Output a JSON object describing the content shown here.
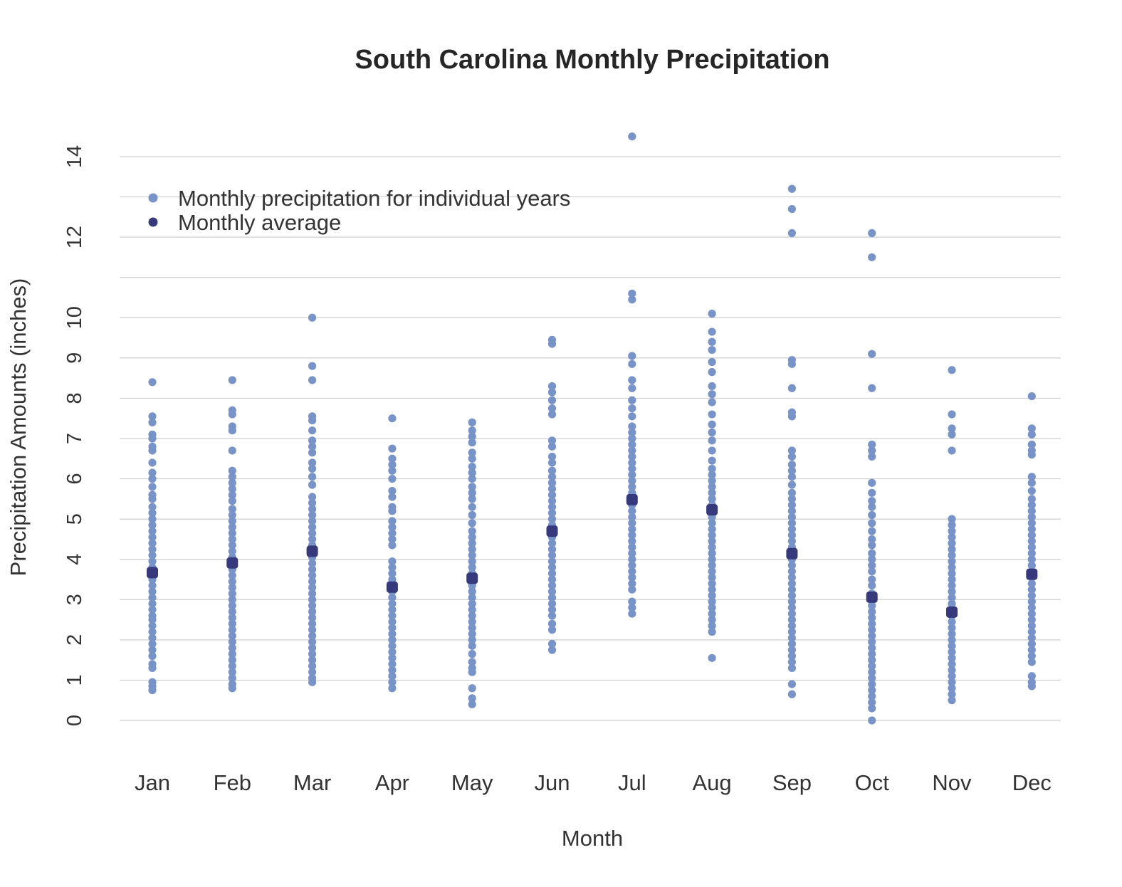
{
  "chart_data": {
    "type": "scatter",
    "title": "South Carolina Monthly Precipitation",
    "xlabel": "Month",
    "ylabel": "Precipitation Amounts (inches)",
    "categories": [
      "Jan",
      "Feb",
      "Mar",
      "Apr",
      "May",
      "Jun",
      "Jul",
      "Aug",
      "Sep",
      "Oct",
      "Nov",
      "Dec"
    ],
    "ylim": [
      0,
      14
    ],
    "yticks": [
      0,
      1,
      2,
      3,
      4,
      5,
      6,
      7,
      8,
      9,
      10,
      12,
      14
    ],
    "grid_values": [
      0,
      1,
      2,
      3,
      4,
      5,
      6,
      7,
      8,
      9,
      10,
      11,
      12,
      13,
      14
    ],
    "grid": true,
    "legend_position": "top-left",
    "colors": {
      "individual": "#7793c8",
      "average": "#363a7c"
    },
    "series": [
      {
        "name": "Monthly precipitation for individual years",
        "values": [
          [
            0.75,
            0.85,
            0.95,
            1.3,
            1.4,
            1.6,
            1.75,
            1.9,
            2.05,
            2.2,
            2.35,
            2.5,
            2.6,
            2.75,
            2.9,
            3.05,
            3.2,
            3.35,
            3.5,
            3.65,
            3.8,
            3.95,
            4.1,
            4.25,
            4.4,
            4.55,
            4.7,
            4.85,
            5.0,
            5.15,
            5.3,
            5.5,
            5.6,
            5.8,
            6.0,
            6.15,
            6.4,
            6.7,
            6.8,
            7.0,
            7.1,
            7.4,
            7.55,
            8.4
          ],
          [
            0.8,
            0.9,
            1.05,
            1.2,
            1.35,
            1.5,
            1.65,
            1.8,
            1.95,
            2.1,
            2.25,
            2.4,
            2.55,
            2.7,
            2.85,
            3.0,
            3.15,
            3.3,
            3.45,
            3.6,
            3.75,
            3.9,
            4.05,
            4.2,
            4.35,
            4.5,
            4.65,
            4.8,
            4.95,
            5.1,
            5.25,
            5.45,
            5.6,
            5.75,
            5.9,
            6.05,
            6.2,
            6.7,
            7.2,
            7.3,
            7.6,
            7.7,
            8.45
          ],
          [
            0.95,
            1.05,
            1.2,
            1.35,
            1.5,
            1.65,
            1.8,
            1.95,
            2.1,
            2.25,
            2.4,
            2.55,
            2.7,
            2.85,
            3.0,
            3.15,
            3.3,
            3.45,
            3.6,
            3.75,
            3.9,
            4.05,
            4.2,
            4.35,
            4.5,
            4.65,
            4.8,
            4.95,
            5.1,
            5.25,
            5.4,
            5.55,
            5.85,
            6.05,
            6.25,
            6.4,
            6.65,
            6.8,
            6.95,
            7.2,
            7.45,
            7.55,
            8.45,
            8.8,
            10.0
          ],
          [
            0.8,
            0.95,
            1.1,
            1.25,
            1.4,
            1.55,
            1.7,
            1.85,
            2.0,
            2.15,
            2.3,
            2.45,
            2.6,
            2.75,
            2.9,
            3.05,
            3.2,
            3.35,
            3.5,
            3.65,
            3.8,
            3.95,
            4.35,
            4.5,
            4.65,
            4.8,
            4.95,
            5.2,
            5.3,
            5.55,
            5.7,
            6.0,
            6.2,
            6.35,
            6.5,
            6.75,
            7.5
          ],
          [
            0.4,
            0.55,
            0.8,
            1.2,
            1.3,
            1.45,
            1.65,
            1.85,
            2.0,
            2.15,
            2.3,
            2.45,
            2.6,
            2.75,
            2.9,
            3.05,
            3.2,
            3.35,
            3.5,
            3.65,
            3.8,
            3.95,
            4.1,
            4.25,
            4.4,
            4.55,
            4.7,
            4.9,
            5.1,
            5.3,
            5.5,
            5.65,
            5.8,
            6.0,
            6.15,
            6.3,
            6.5,
            6.65,
            6.9,
            7.05,
            7.2,
            7.4
          ],
          [
            1.75,
            1.9,
            2.25,
            2.4,
            2.6,
            2.75,
            2.9,
            3.05,
            3.2,
            3.35,
            3.5,
            3.65,
            3.8,
            3.95,
            4.1,
            4.25,
            4.4,
            4.55,
            4.7,
            4.85,
            5.0,
            5.15,
            5.3,
            5.45,
            5.6,
            5.75,
            5.9,
            6.05,
            6.2,
            6.4,
            6.55,
            6.8,
            6.95,
            7.6,
            7.75,
            7.95,
            8.15,
            8.3,
            9.35,
            9.45
          ],
          [
            2.65,
            2.8,
            2.95,
            3.25,
            3.4,
            3.55,
            3.7,
            3.85,
            4.0,
            4.15,
            4.3,
            4.45,
            4.6,
            4.75,
            4.9,
            5.05,
            5.2,
            5.35,
            5.5,
            5.65,
            5.8,
            5.95,
            6.1,
            6.25,
            6.4,
            6.55,
            6.7,
            6.85,
            7.0,
            7.15,
            7.3,
            7.55,
            7.75,
            7.95,
            8.25,
            8.45,
            8.85,
            9.05,
            10.45,
            10.6,
            14.5
          ],
          [
            1.55,
            2.2,
            2.35,
            2.5,
            2.65,
            2.8,
            2.95,
            3.1,
            3.25,
            3.4,
            3.55,
            3.7,
            3.85,
            4.0,
            4.15,
            4.3,
            4.45,
            4.6,
            4.75,
            4.9,
            5.05,
            5.2,
            5.35,
            5.5,
            5.65,
            5.8,
            5.95,
            6.1,
            6.25,
            6.45,
            6.7,
            6.95,
            7.15,
            7.35,
            7.6,
            7.9,
            8.1,
            8.3,
            8.65,
            8.9,
            9.2,
            9.4,
            9.65,
            10.1
          ],
          [
            0.65,
            0.9,
            1.3,
            1.45,
            1.6,
            1.75,
            1.9,
            2.05,
            2.2,
            2.35,
            2.5,
            2.65,
            2.8,
            2.95,
            3.1,
            3.25,
            3.4,
            3.55,
            3.7,
            3.85,
            4.0,
            4.15,
            4.3,
            4.45,
            4.6,
            4.75,
            4.9,
            5.05,
            5.2,
            5.35,
            5.5,
            5.65,
            5.85,
            6.05,
            6.2,
            6.35,
            6.55,
            6.7,
            7.55,
            7.65,
            8.25,
            8.85,
            8.95,
            12.1,
            12.7,
            13.2
          ],
          [
            0.0,
            0.3,
            0.45,
            0.6,
            0.75,
            0.9,
            1.05,
            1.2,
            1.35,
            1.5,
            1.65,
            1.8,
            1.95,
            2.1,
            2.25,
            2.4,
            2.55,
            2.7,
            2.85,
            3.0,
            3.15,
            3.35,
            3.5,
            3.7,
            3.85,
            4.0,
            4.15,
            4.35,
            4.5,
            4.7,
            4.9,
            5.1,
            5.3,
            5.45,
            5.65,
            5.9,
            6.55,
            6.7,
            6.85,
            8.25,
            9.1,
            11.5,
            12.1
          ],
          [
            0.5,
            0.65,
            0.8,
            0.95,
            1.1,
            1.25,
            1.4,
            1.55,
            1.7,
            1.85,
            2.0,
            2.15,
            2.3,
            2.45,
            2.6,
            2.75,
            2.9,
            3.05,
            3.2,
            3.35,
            3.5,
            3.65,
            3.8,
            3.95,
            4.1,
            4.25,
            4.4,
            4.55,
            4.7,
            4.85,
            5.0,
            6.7,
            7.1,
            7.25,
            7.6,
            8.7
          ],
          [
            0.85,
            0.95,
            1.1,
            1.45,
            1.6,
            1.75,
            1.9,
            2.05,
            2.2,
            2.35,
            2.5,
            2.65,
            2.8,
            2.95,
            3.1,
            3.25,
            3.4,
            3.55,
            3.7,
            3.85,
            4.0,
            4.15,
            4.3,
            4.45,
            4.6,
            4.75,
            4.9,
            5.05,
            5.2,
            5.35,
            5.5,
            5.7,
            5.9,
            6.05,
            6.6,
            6.7,
            6.85,
            7.1,
            7.25,
            8.05
          ]
        ]
      },
      {
        "name": "Monthly average",
        "values": [
          3.67,
          3.91,
          4.2,
          3.31,
          3.53,
          4.7,
          5.48,
          5.23,
          4.14,
          3.06,
          2.69,
          3.63
        ]
      }
    ]
  }
}
